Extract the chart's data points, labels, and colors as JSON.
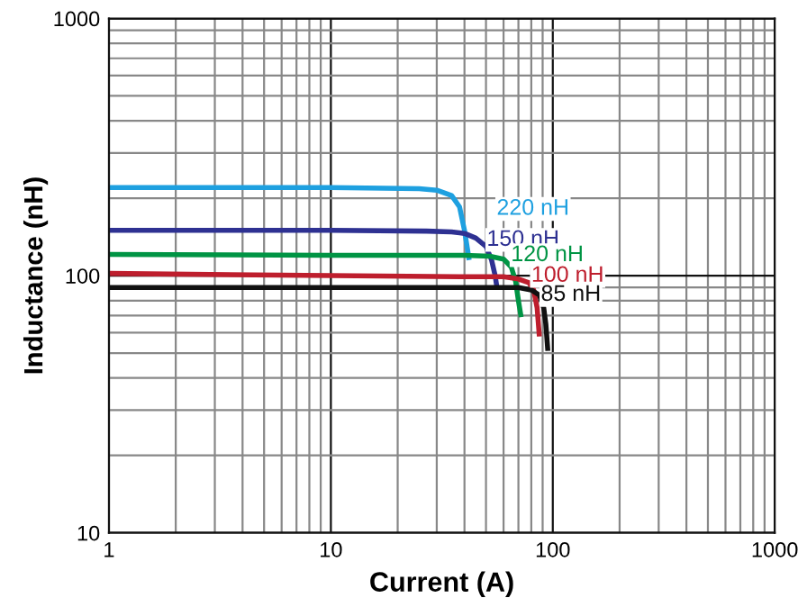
{
  "chart_data": {
    "type": "line",
    "xlabel": "Current (A)",
    "ylabel": "Inductance (nH)",
    "log": "xy",
    "xlim": [
      1,
      1000
    ],
    "ylim": [
      10,
      1000
    ],
    "xticks": [
      1,
      10,
      100,
      1000
    ],
    "yticks": [
      10,
      100,
      1000
    ],
    "grid": true,
    "legend": false,
    "marker": "none",
    "line_style": "solid",
    "series": [
      {
        "name": "220 nH",
        "color": "#1ea0e0",
        "x": [
          1,
          10,
          25,
          30,
          35,
          38,
          40,
          42
        ],
        "values": [
          220,
          220,
          218,
          215,
          205,
          185,
          150,
          115
        ]
      },
      {
        "name": "150 nH",
        "color": "#2e3192",
        "x": [
          1,
          10,
          27,
          35,
          40,
          45,
          50,
          53,
          55,
          56
        ],
        "values": [
          150,
          150,
          149,
          148,
          146,
          140,
          130,
          115,
          100,
          90
        ]
      },
      {
        "name": "120 nH",
        "color": "#009444",
        "x": [
          1,
          10,
          40,
          52,
          60,
          65,
          68,
          70,
          72
        ],
        "values": [
          121,
          120,
          120,
          119,
          116,
          108,
          95,
          80,
          69
        ]
      },
      {
        "name": "100 nH",
        "color": "#be1e2d",
        "x": [
          1,
          10,
          40,
          60,
          70,
          78,
          82,
          85,
          87
        ],
        "values": [
          102,
          100,
          99,
          99,
          97,
          94,
          88,
          75,
          58
        ]
      },
      {
        "name": "85 nH",
        "color": "#111111",
        "x": [
          1,
          10,
          40,
          70,
          80,
          87,
          91,
          93,
          95
        ],
        "values": [
          90,
          90,
          90,
          90,
          88,
          84,
          75,
          65,
          51
        ]
      }
    ]
  }
}
